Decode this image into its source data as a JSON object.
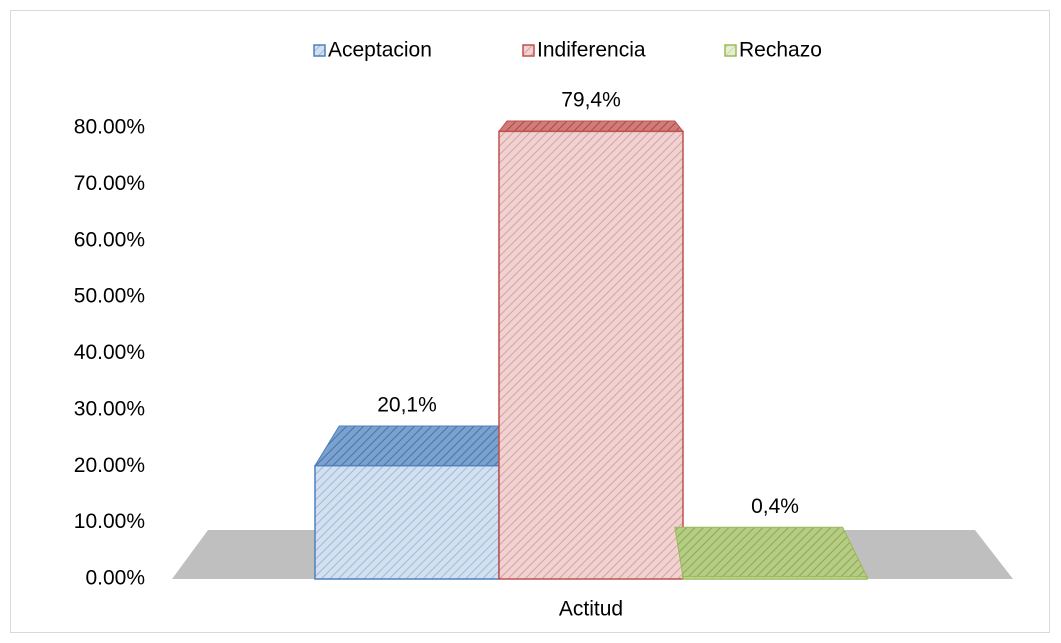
{
  "chart_data": {
    "type": "bar3d",
    "categories": [
      "Actitud"
    ],
    "series": [
      {
        "name": "Aceptacion",
        "color": "#4f81bd",
        "values": [
          20.1
        ],
        "value_labels": [
          "20,1%"
        ]
      },
      {
        "name": "Indiferencia",
        "color": "#c0504d",
        "values": [
          79.4
        ],
        "value_labels": [
          "79,4%"
        ]
      },
      {
        "name": "Rechazo",
        "color": "#9bbb59",
        "values": [
          0.4
        ],
        "value_labels": [
          "0,4%"
        ]
      }
    ],
    "ylim": [
      0,
      80
    ],
    "yticks": [
      {
        "value": 0,
        "label": "0.00%"
      },
      {
        "value": 10,
        "label": "10.00%"
      },
      {
        "value": 20,
        "label": "20.00%"
      },
      {
        "value": 30,
        "label": "30.00%"
      },
      {
        "value": 40,
        "label": "40.00%"
      },
      {
        "value": 50,
        "label": "50.00%"
      },
      {
        "value": 60,
        "label": "60.00%"
      },
      {
        "value": 70,
        "label": "70.00%"
      },
      {
        "value": 80,
        "label": "80.00%"
      }
    ],
    "legend": "top"
  }
}
